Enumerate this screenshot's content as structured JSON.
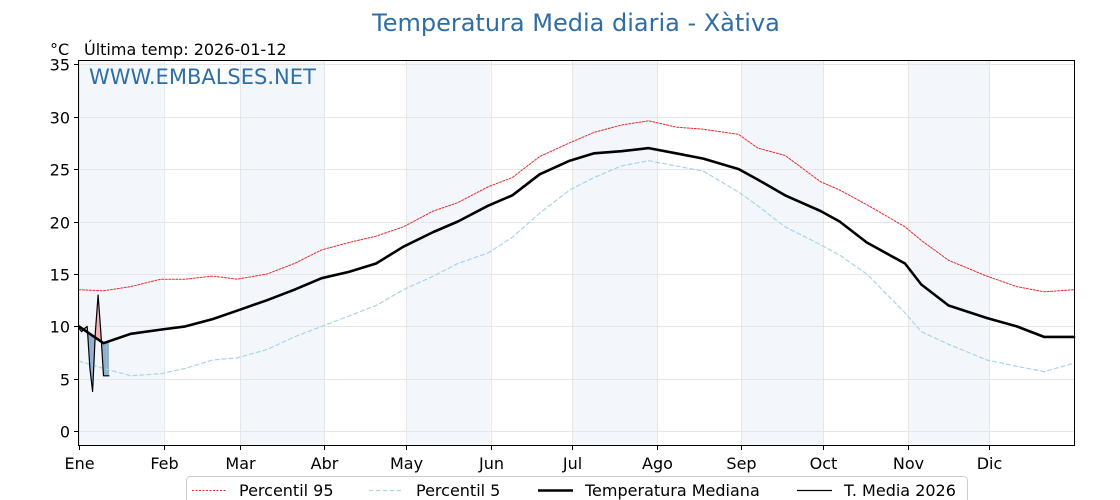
{
  "chart_data": {
    "type": "line",
    "title": "Temperatura Media diaria - Xàtiva",
    "unit_label": "°C",
    "last_temp_label": "Última temp: 2026-01-12",
    "watermark": "WWW.EMBALSES.NET",
    "xlabel": "",
    "ylabel": "",
    "ylim": [
      -1.3,
      35.3
    ],
    "xlim": [
      1,
      366
    ],
    "yticks": [
      0,
      5,
      10,
      15,
      20,
      25,
      30,
      35
    ],
    "months": [
      {
        "label": "Ene",
        "day": 1
      },
      {
        "label": "Feb",
        "day": 32
      },
      {
        "label": "Mar",
        "day": 60
      },
      {
        "label": "Abr",
        "day": 91
      },
      {
        "label": "May",
        "day": 121
      },
      {
        "label": "Jun",
        "day": 152
      },
      {
        "label": "Jul",
        "day": 182
      },
      {
        "label": "Ago",
        "day": 213
      },
      {
        "label": "Sep",
        "day": 244
      },
      {
        "label": "Oct",
        "day": 274
      },
      {
        "label": "Nov",
        "day": 305
      },
      {
        "label": "Dic",
        "day": 335
      }
    ],
    "grid": true,
    "legend_position": "bottom",
    "series": [
      {
        "name": "Percentil 95",
        "color": "#e8292a",
        "style": "dotted",
        "x": [
          1,
          10,
          20,
          31,
          40,
          50,
          59,
          70,
          80,
          90,
          100,
          110,
          120,
          131,
          140,
          151,
          160,
          170,
          181,
          190,
          200,
          210,
          220,
          230,
          243,
          250,
          260,
          273,
          280,
          290,
          304,
          310,
          320,
          334,
          345,
          355,
          366
        ],
        "y": [
          13.5,
          13.4,
          13.8,
          14.5,
          14.5,
          14.8,
          14.5,
          15.0,
          16.0,
          17.3,
          18.0,
          18.6,
          19.5,
          21.0,
          21.8,
          23.3,
          24.2,
          26.2,
          27.5,
          28.5,
          29.2,
          29.6,
          29.0,
          28.8,
          28.3,
          27.0,
          26.3,
          23.8,
          23.0,
          21.6,
          19.5,
          18.2,
          16.3,
          14.8,
          13.8,
          13.3,
          13.5
        ]
      },
      {
        "name": "Percentil 5",
        "color": "#a8d4e8",
        "style": "dashed",
        "x": [
          1,
          10,
          20,
          31,
          40,
          50,
          59,
          70,
          80,
          90,
          100,
          110,
          120,
          131,
          140,
          151,
          160,
          170,
          181,
          190,
          200,
          210,
          220,
          230,
          243,
          250,
          260,
          273,
          280,
          290,
          304,
          310,
          320,
          334,
          345,
          355,
          366
        ],
        "y": [
          6.7,
          6.0,
          5.3,
          5.5,
          6.0,
          6.8,
          7.0,
          7.8,
          9.0,
          10.0,
          11.0,
          12.0,
          13.5,
          14.8,
          16.0,
          17.0,
          18.5,
          20.8,
          23.0,
          24.2,
          25.3,
          25.8,
          25.3,
          24.8,
          22.8,
          21.5,
          19.5,
          17.8,
          16.8,
          15.0,
          11.3,
          9.5,
          8.3,
          6.8,
          6.2,
          5.7,
          6.5
        ]
      },
      {
        "name": "Temperatura Mediana",
        "color": "#000000",
        "style": "thick",
        "x": [
          1,
          10,
          20,
          31,
          40,
          50,
          59,
          70,
          80,
          90,
          100,
          110,
          120,
          131,
          140,
          151,
          160,
          170,
          181,
          190,
          200,
          210,
          220,
          230,
          243,
          250,
          260,
          273,
          280,
          290,
          304,
          310,
          320,
          334,
          345,
          355,
          366
        ],
        "y": [
          10.0,
          8.4,
          9.3,
          9.7,
          10.0,
          10.7,
          11.5,
          12.5,
          13.5,
          14.6,
          15.2,
          16.0,
          17.6,
          19.0,
          20.0,
          21.5,
          22.5,
          24.5,
          25.8,
          26.5,
          26.7,
          27.0,
          26.5,
          26.0,
          25.0,
          24.0,
          22.5,
          21.0,
          20.0,
          18.0,
          16.0,
          14.0,
          12.0,
          10.8,
          10.0,
          9.0,
          9.0
        ]
      },
      {
        "name": "T. Media 2026",
        "color": "#000000",
        "style": "thin",
        "x": [
          1,
          2,
          3,
          4,
          5,
          6,
          7,
          8,
          9,
          10,
          11,
          12
        ],
        "y": [
          9.8,
          9.5,
          9.8,
          10.0,
          6.0,
          3.8,
          9.5,
          13.0,
          9.5,
          5.3,
          5.3,
          5.3
        ]
      }
    ]
  }
}
